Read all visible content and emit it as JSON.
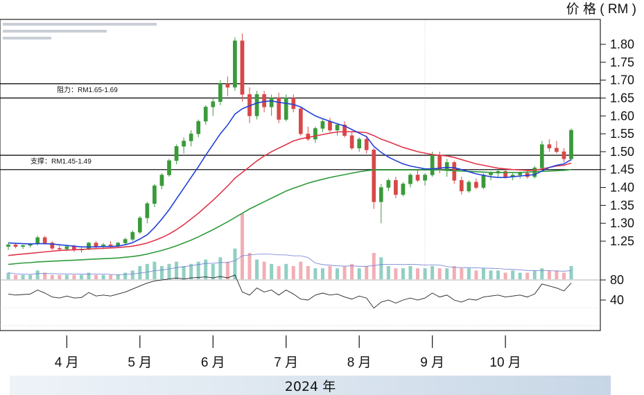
{
  "chart_data": {
    "type": "candlestick",
    "y_unit_label": "价 格 ( RM )",
    "year_label": "2024 年",
    "x_tick_labels": [
      "4 月",
      "5 月",
      "6 月",
      "7 月",
      "8 月",
      "9 月",
      "10 月"
    ],
    "y_price_ticks": [
      1.25,
      1.3,
      1.35,
      1.4,
      1.45,
      1.5,
      1.55,
      1.6,
      1.65,
      1.7,
      1.75,
      1.8
    ],
    "y_price_labels": [
      "1.25",
      "1.30",
      "1.35",
      "1.40",
      "1.45",
      "1.50",
      "1.55",
      "1.60",
      "1.65",
      "1.70",
      "1.75",
      "1.80"
    ],
    "ylim_price": [
      1.2,
      1.85
    ],
    "y_rsi_ticks": [
      80,
      40
    ],
    "y_rsi_labels": [
      "80",
      "40"
    ],
    "ylim_rsi": [
      0,
      100
    ],
    "resistance": {
      "label": "阻力：RM1.65-1.69",
      "low": 1.65,
      "high": 1.69
    },
    "support": {
      "label": "支撑：RM1.45-1.49",
      "low": 1.45,
      "high": 1.49
    },
    "colors": {
      "up": "#3a9a3a",
      "down": "#d84848",
      "ma_fast": "#1f3fd8",
      "ma_mid": "#e03448",
      "ma_slow": "#2e9a3a",
      "rsi": "#222222"
    },
    "month_index": [
      8,
      18,
      28,
      38,
      48,
      58,
      68
    ],
    "candles": [
      [
        1.235,
        1.245,
        1.225,
        1.24
      ],
      [
        1.24,
        1.245,
        1.23,
        1.235
      ],
      [
        1.235,
        1.24,
        1.228,
        1.238
      ],
      [
        1.238,
        1.245,
        1.232,
        1.242
      ],
      [
        1.242,
        1.265,
        1.238,
        1.26
      ],
      [
        1.26,
        1.265,
        1.24,
        1.245
      ],
      [
        1.245,
        1.25,
        1.225,
        1.23
      ],
      [
        1.23,
        1.24,
        1.222,
        1.228
      ],
      [
        1.228,
        1.24,
        1.222,
        1.235
      ],
      [
        1.235,
        1.24,
        1.22,
        1.225
      ],
      [
        1.225,
        1.232,
        1.218,
        1.228
      ],
      [
        1.228,
        1.248,
        1.225,
        1.245
      ],
      [
        1.245,
        1.25,
        1.23,
        1.235
      ],
      [
        1.235,
        1.245,
        1.228,
        1.24
      ],
      [
        1.24,
        1.25,
        1.232,
        1.236
      ],
      [
        1.236,
        1.248,
        1.232,
        1.245
      ],
      [
        1.245,
        1.26,
        1.24,
        1.255
      ],
      [
        1.255,
        1.28,
        1.25,
        1.275
      ],
      [
        1.275,
        1.32,
        1.27,
        1.315
      ],
      [
        1.315,
        1.36,
        1.3,
        1.355
      ],
      [
        1.355,
        1.41,
        1.345,
        1.405
      ],
      [
        1.405,
        1.44,
        1.395,
        1.435
      ],
      [
        1.435,
        1.48,
        1.43,
        1.475
      ],
      [
        1.475,
        1.52,
        1.465,
        1.515
      ],
      [
        1.515,
        1.54,
        1.495,
        1.53
      ],
      [
        1.53,
        1.56,
        1.515,
        1.55
      ],
      [
        1.55,
        1.59,
        1.54,
        1.585
      ],
      [
        1.585,
        1.63,
        1.575,
        1.625
      ],
      [
        1.625,
        1.65,
        1.6,
        1.64
      ],
      [
        1.64,
        1.7,
        1.63,
        1.69
      ],
      [
        1.69,
        1.71,
        1.655,
        1.68
      ],
      [
        1.68,
        1.82,
        1.67,
        1.81
      ],
      [
        1.81,
        1.83,
        1.64,
        1.66
      ],
      [
        1.66,
        1.68,
        1.58,
        1.6
      ],
      [
        1.6,
        1.67,
        1.59,
        1.66
      ],
      [
        1.66,
        1.67,
        1.61,
        1.625
      ],
      [
        1.625,
        1.66,
        1.6,
        1.65
      ],
      [
        1.65,
        1.665,
        1.58,
        1.59
      ],
      [
        1.59,
        1.66,
        1.585,
        1.65
      ],
      [
        1.65,
        1.66,
        1.61,
        1.62
      ],
      [
        1.62,
        1.625,
        1.545,
        1.55
      ],
      [
        1.55,
        1.57,
        1.53,
        1.535
      ],
      [
        1.535,
        1.57,
        1.525,
        1.565
      ],
      [
        1.565,
        1.59,
        1.555,
        1.585
      ],
      [
        1.585,
        1.595,
        1.555,
        1.56
      ],
      [
        1.56,
        1.58,
        1.545,
        1.575
      ],
      [
        1.575,
        1.585,
        1.54,
        1.545
      ],
      [
        1.545,
        1.555,
        1.505,
        1.51
      ],
      [
        1.51,
        1.54,
        1.5,
        1.535
      ],
      [
        1.535,
        1.545,
        1.495,
        1.505
      ],
      [
        1.505,
        1.51,
        1.34,
        1.36
      ],
      [
        1.36,
        1.41,
        1.3,
        1.4
      ],
      [
        1.4,
        1.425,
        1.39,
        1.42
      ],
      [
        1.42,
        1.43,
        1.37,
        1.38
      ],
      [
        1.38,
        1.415,
        1.375,
        1.41
      ],
      [
        1.41,
        1.44,
        1.4,
        1.435
      ],
      [
        1.435,
        1.45,
        1.415,
        1.42
      ],
      [
        1.42,
        1.44,
        1.405,
        1.435
      ],
      [
        1.435,
        1.5,
        1.43,
        1.49
      ],
      [
        1.49,
        1.5,
        1.44,
        1.45
      ],
      [
        1.45,
        1.48,
        1.43,
        1.47
      ],
      [
        1.47,
        1.475,
        1.41,
        1.42
      ],
      [
        1.42,
        1.43,
        1.38,
        1.39
      ],
      [
        1.39,
        1.42,
        1.385,
        1.415
      ],
      [
        1.415,
        1.425,
        1.395,
        1.4
      ],
      [
        1.4,
        1.44,
        1.395,
        1.435
      ],
      [
        1.435,
        1.445,
        1.42,
        1.44
      ],
      [
        1.44,
        1.45,
        1.43,
        1.445
      ],
      [
        1.445,
        1.45,
        1.425,
        1.43
      ],
      [
        1.43,
        1.44,
        1.42,
        1.435
      ],
      [
        1.435,
        1.445,
        1.425,
        1.44
      ],
      [
        1.44,
        1.45,
        1.425,
        1.43
      ],
      [
        1.43,
        1.46,
        1.425,
        1.455
      ],
      [
        1.455,
        1.53,
        1.45,
        1.52
      ],
      [
        1.52,
        1.535,
        1.5,
        1.51
      ],
      [
        1.51,
        1.53,
        1.495,
        1.5
      ],
      [
        1.5,
        1.51,
        1.47,
        1.48
      ],
      [
        1.48,
        1.565,
        1.475,
        1.56
      ]
    ],
    "ma_fast": [
      1.245,
      1.244,
      1.243,
      1.242,
      1.243,
      1.243,
      1.242,
      1.24,
      1.238,
      1.236,
      1.234,
      1.234,
      1.234,
      1.235,
      1.235,
      1.236,
      1.24,
      1.246,
      1.256,
      1.268,
      1.288,
      1.312,
      1.338,
      1.368,
      1.398,
      1.428,
      1.458,
      1.49,
      1.52,
      1.55,
      1.575,
      1.605,
      1.62,
      1.628,
      1.636,
      1.64,
      1.642,
      1.638,
      1.635,
      1.632,
      1.625,
      1.612,
      1.6,
      1.592,
      1.585,
      1.578,
      1.572,
      1.562,
      1.552,
      1.542,
      1.515,
      1.498,
      1.485,
      1.475,
      1.466,
      1.46,
      1.456,
      1.452,
      1.452,
      1.454,
      1.456,
      1.455,
      1.45,
      1.444,
      1.438,
      1.434,
      1.43,
      1.428,
      1.428,
      1.43,
      1.432,
      1.434,
      1.436,
      1.446,
      1.456,
      1.462,
      1.466,
      1.478
    ],
    "ma_mid": [
      1.21,
      1.212,
      1.214,
      1.216,
      1.218,
      1.22,
      1.222,
      1.224,
      1.225,
      1.226,
      1.227,
      1.228,
      1.229,
      1.23,
      1.231,
      1.232,
      1.234,
      1.236,
      1.24,
      1.245,
      1.252,
      1.26,
      1.27,
      1.282,
      1.296,
      1.312,
      1.328,
      1.346,
      1.364,
      1.384,
      1.404,
      1.426,
      1.442,
      1.458,
      1.474,
      1.488,
      1.5,
      1.51,
      1.52,
      1.53,
      1.536,
      1.54,
      1.544,
      1.548,
      1.552,
      1.555,
      1.556,
      1.556,
      1.555,
      1.553,
      1.545,
      1.535,
      1.528,
      1.52,
      1.512,
      1.506,
      1.5,
      1.496,
      1.492,
      1.49,
      1.488,
      1.484,
      1.478,
      1.472,
      1.466,
      1.462,
      1.458,
      1.454,
      1.452,
      1.45,
      1.449,
      1.448,
      1.448,
      1.452,
      1.456,
      1.46,
      1.462,
      1.468
    ],
    "ma_slow": [
      1.185,
      1.187,
      1.189,
      1.19,
      1.192,
      1.193,
      1.194,
      1.195,
      1.196,
      1.197,
      1.198,
      1.199,
      1.2,
      1.201,
      1.202,
      1.203,
      1.205,
      1.207,
      1.21,
      1.214,
      1.219,
      1.224,
      1.23,
      1.237,
      1.245,
      1.253,
      1.262,
      1.272,
      1.282,
      1.293,
      1.304,
      1.316,
      1.328,
      1.34,
      1.35,
      1.36,
      1.37,
      1.38,
      1.39,
      1.398,
      1.405,
      1.412,
      1.418,
      1.423,
      1.428,
      1.432,
      1.436,
      1.44,
      1.444,
      1.447,
      1.449,
      1.449,
      1.449,
      1.449,
      1.449,
      1.449,
      1.449,
      1.449,
      1.449,
      1.449,
      1.448,
      1.447,
      1.446,
      1.445,
      1.444,
      1.443,
      1.442,
      1.442,
      1.442,
      1.442,
      1.442,
      1.443,
      1.444,
      1.445,
      1.446,
      1.447,
      1.448,
      1.45
    ],
    "volume": [
      3,
      2,
      2,
      2,
      4,
      3,
      2,
      2,
      2,
      2,
      2,
      3,
      2,
      2,
      2,
      2,
      3,
      4,
      6,
      7,
      8,
      6,
      7,
      8,
      6,
      7,
      8,
      9,
      7,
      10,
      8,
      14,
      30,
      12,
      9,
      8,
      7,
      6,
      7,
      6,
      8,
      6,
      5,
      5,
      6,
      5,
      6,
      7,
      5,
      6,
      12,
      10,
      6,
      5,
      5,
      6,
      5,
      5,
      6,
      5,
      5,
      6,
      5,
      5,
      4,
      5,
      4,
      4,
      3,
      4,
      3,
      3,
      4,
      5,
      4,
      4,
      3,
      6
    ],
    "rsi": [
      52,
      50,
      51,
      52,
      60,
      54,
      46,
      44,
      48,
      44,
      45,
      55,
      48,
      50,
      48,
      52,
      56,
      62,
      68,
      74,
      78,
      80,
      82,
      84,
      82,
      84,
      85,
      86,
      84,
      87,
      84,
      90,
      56,
      50,
      64,
      56,
      60,
      50,
      60,
      52,
      42,
      40,
      50,
      54,
      50,
      52,
      46,
      42,
      48,
      44,
      24,
      36,
      40,
      34,
      40,
      44,
      40,
      44,
      54,
      46,
      50,
      40,
      36,
      42,
      40,
      46,
      48,
      50,
      46,
      48,
      50,
      46,
      52,
      72,
      68,
      64,
      58,
      74
    ]
  }
}
